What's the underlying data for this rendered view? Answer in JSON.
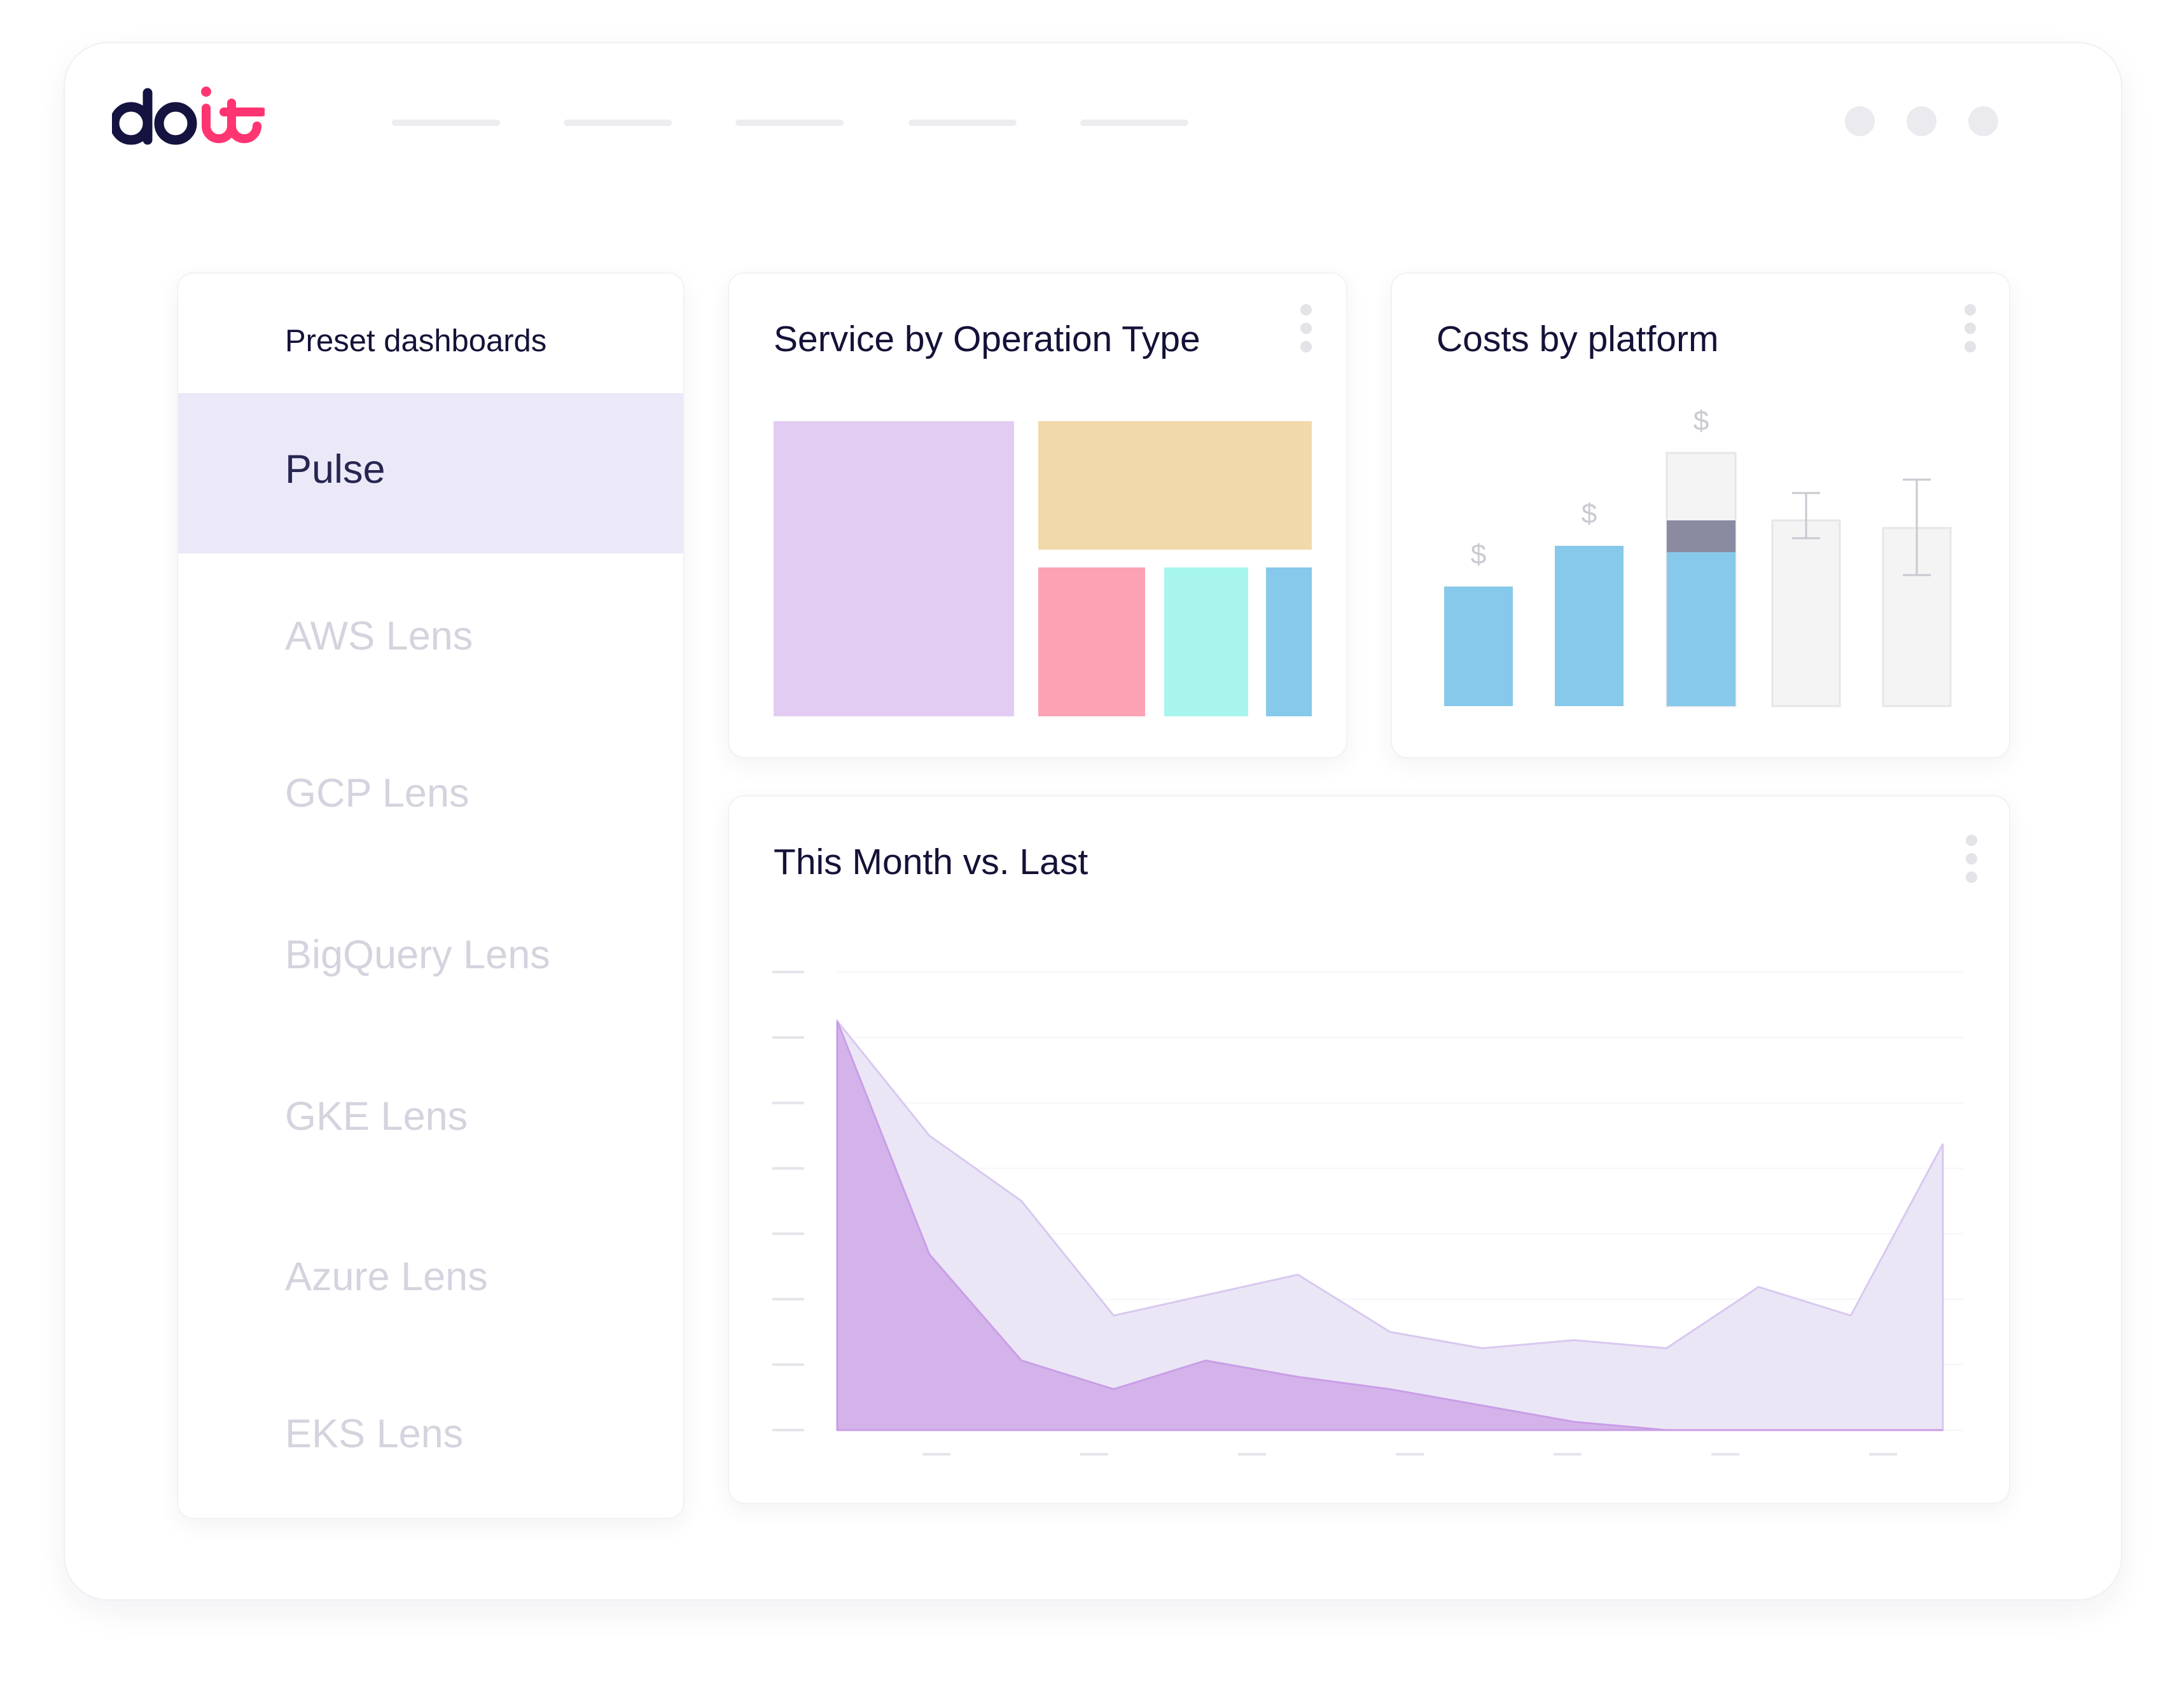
{
  "logo": {
    "text": "doit"
  },
  "nav": {
    "placeholders": 5
  },
  "window": {
    "dots": 3
  },
  "sidebar": {
    "heading": "Preset dashboards",
    "items": [
      {
        "label": "Pulse",
        "active": true
      },
      {
        "label": "AWS Lens",
        "active": false
      },
      {
        "label": "GCP Lens",
        "active": false
      },
      {
        "label": "BigQuery Lens",
        "active": false
      },
      {
        "label": "GKE Lens",
        "active": false
      },
      {
        "label": "Azure Lens",
        "active": false
      },
      {
        "label": "EKS Lens",
        "active": false
      }
    ]
  },
  "widgets": {
    "service_by_operation": {
      "title": "Service by Operation Type",
      "menu_icon": "kebab-menu-icon",
      "chart_data": {
        "type": "treemap",
        "colors": [
          "#e3ccf1",
          "#f2d9aa",
          "#fda1b5",
          "#a7f5ec",
          "#87c9ea"
        ]
      }
    },
    "costs_by_platform": {
      "title": "Costs by platform",
      "menu_icon": "kebab-menu-icon",
      "chart_data": {
        "type": "bar",
        "bar_labels": [
          "$",
          "$",
          "$"
        ],
        "colors": {
          "filled": "#87c9ea",
          "stacked": "#8a8aa1",
          "ghost": "#f4f4f4"
        }
      }
    },
    "this_month_vs_last": {
      "title": "This Month vs. Last",
      "menu_icon": "kebab-menu-icon",
      "chart_data": {
        "type": "area",
        "series": [
          {
            "values": [
              100,
              72,
              56,
              28,
              33,
              38,
              24,
              20,
              22,
              20,
              35,
              28,
              70
            ],
            "color": "#ebe6f6"
          },
          {
            "values": [
              100,
              43,
              17,
              10,
              17,
              13,
              10,
              6,
              2,
              0,
              0,
              0,
              0
            ],
            "color": "#d3b0e9"
          }
        ],
        "ylim": [
          0,
          112
        ],
        "y_ticks": 8,
        "x_ticks": 7,
        "grid": true
      }
    }
  }
}
